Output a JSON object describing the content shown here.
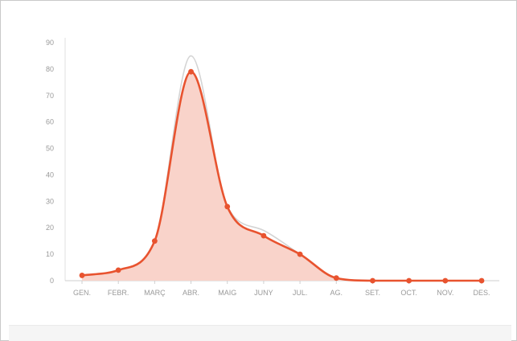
{
  "chart_data": {
    "type": "area",
    "categories": [
      "GEN.",
      "FEBR.",
      "MARÇ",
      "ABR.",
      "MAIG",
      "JUNY",
      "JUL.",
      "AG.",
      "SET.",
      "OCT.",
      "NOV.",
      "DES."
    ],
    "yticks": [
      0,
      10,
      20,
      30,
      40,
      50,
      60,
      70,
      80,
      90
    ],
    "ylim": [
      0,
      90
    ],
    "series": [
      {
        "values": [
          2,
          4,
          15,
          79,
          28,
          17,
          10,
          1,
          0,
          0,
          0,
          0
        ],
        "color": "#e8532f",
        "markers": true,
        "fill": "#f9d3ca"
      },
      {
        "values": [
          2,
          4,
          15,
          85,
          28,
          19,
          10,
          1,
          0,
          0,
          0,
          0
        ],
        "color": "#d4d4d4",
        "markers": false
      }
    ],
    "grid": false,
    "legend": "none"
  }
}
